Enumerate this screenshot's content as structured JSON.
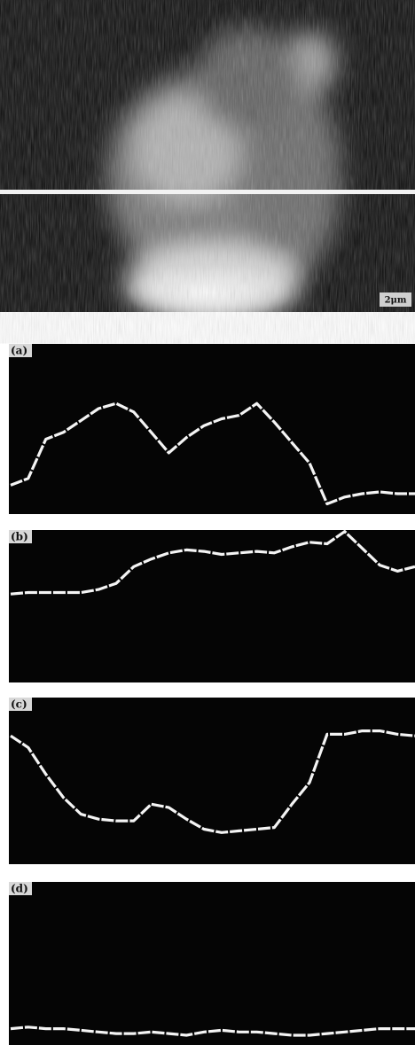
{
  "scale_bar": "2μm",
  "ylim": [
    0,
    100
  ],
  "panels": [
    {
      "label": "(a)",
      "values": [
        17,
        21,
        44,
        48,
        55,
        62,
        65,
        60,
        48,
        36,
        45,
        52,
        56,
        58,
        65,
        54,
        42,
        30,
        6,
        10,
        12,
        13,
        12,
        12
      ]
    },
    {
      "label": "(b)",
      "values": [
        58,
        59,
        59,
        59,
        59,
        61,
        65,
        76,
        81,
        85,
        87,
        86,
        84,
        85,
        86,
        85,
        89,
        92,
        91,
        99,
        88,
        77,
        73,
        76
      ]
    },
    {
      "label": "(c)",
      "values": [
        77,
        70,
        54,
        40,
        30,
        27,
        26,
        26,
        36,
        34,
        27,
        21,
        19,
        20,
        21,
        22,
        36,
        49,
        78,
        78,
        80,
        80,
        78,
        77
      ]
    },
    {
      "label": "(d)",
      "values": [
        10,
        11,
        10,
        10,
        9,
        8,
        7,
        7,
        8,
        7,
        6,
        8,
        9,
        8,
        8,
        7,
        6,
        6,
        7,
        8,
        9,
        10,
        10,
        10
      ]
    }
  ]
}
